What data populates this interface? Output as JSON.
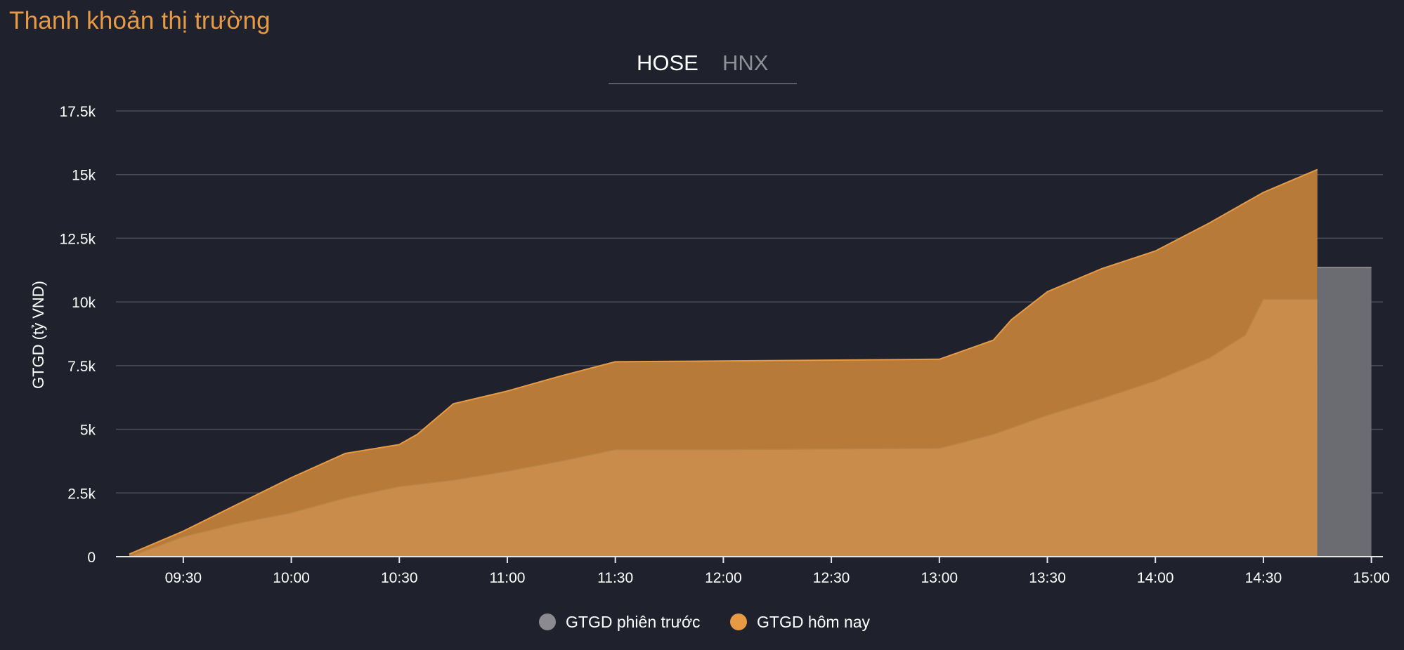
{
  "header": {
    "title": "Thanh khoản thị trường"
  },
  "tabs": [
    {
      "label": "HOSE",
      "active": true
    },
    {
      "label": "HNX",
      "active": false
    }
  ],
  "legend": {
    "prev_label": "GTGD phiên trước",
    "today_label": "GTGD hôm nay"
  },
  "colors": {
    "background": "#1f222d",
    "accent": "#e79a43",
    "prev_session": "#8a8a8f",
    "today": "#e79a43",
    "today_upper_fill": "#b77a38",
    "today_lower_fill": "#c98c4a"
  },
  "chart_data": {
    "type": "area",
    "ylabel": "GTGD (tỷ VND)",
    "xlabel": "",
    "ylim": [
      0,
      17500
    ],
    "xlim": [
      "09:15",
      "15:00"
    ],
    "yticks": [
      "0",
      "2.5k",
      "5k",
      "7.5k",
      "10k",
      "12.5k",
      "15k",
      "17.5k"
    ],
    "ytick_values": [
      0,
      2500,
      5000,
      7500,
      10000,
      12500,
      15000,
      17500
    ],
    "xticks": [
      "09:30",
      "10:00",
      "10:30",
      "11:00",
      "11:30",
      "12:00",
      "12:30",
      "13:00",
      "13:30",
      "14:00",
      "14:30",
      "15:00"
    ],
    "grid": true,
    "legend_position": "bottom",
    "series": [
      {
        "name": "GTGD phiên trước",
        "x": [
          "09:15",
          "09:30",
          "09:45",
          "10:00",
          "10:15",
          "10:30",
          "10:45",
          "11:00",
          "11:15",
          "11:30",
          "12:00",
          "13:00",
          "13:15",
          "13:30",
          "13:45",
          "14:00",
          "14:15",
          "14:25",
          "14:30",
          "14:45"
        ],
        "values": [
          0,
          780,
          1300,
          1720,
          2300,
          2750,
          3000,
          3350,
          3750,
          4200,
          4200,
          4250,
          4800,
          5550,
          6200,
          6900,
          7800,
          8700,
          10100,
          10100
        ]
      },
      {
        "name": "GTGD hôm nay",
        "x": [
          "09:15",
          "09:30",
          "09:40",
          "10:00",
          "10:15",
          "10:30",
          "10:35",
          "10:45",
          "11:00",
          "11:15",
          "11:30",
          "12:00",
          "13:00",
          "13:15",
          "13:20",
          "13:30",
          "13:45",
          "14:00",
          "14:15",
          "14:30",
          "14:45"
        ],
        "values": [
          100,
          1000,
          1700,
          3100,
          4050,
          4400,
          4800,
          6000,
          6500,
          7100,
          7650,
          7680,
          7750,
          8500,
          9300,
          10400,
          11300,
          12000,
          13100,
          14300,
          15200
        ]
      },
      {
        "name": "",
        "x": [
          "14:45",
          "15:00"
        ],
        "values": [
          11350,
          11350
        ]
      }
    ]
  }
}
